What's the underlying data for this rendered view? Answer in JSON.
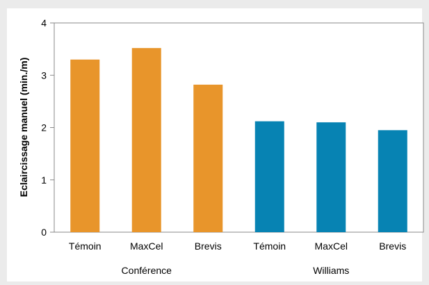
{
  "chart_data": {
    "type": "bar",
    "ylabel": "Eclaircissage manuel (min./m)",
    "ylim": [
      0,
      4
    ],
    "yticks": [
      0,
      1,
      2,
      3,
      4
    ],
    "grid": false,
    "categories": [
      "Témoin",
      "MaxCel",
      "Brevis",
      "Témoin",
      "MaxCel",
      "Brevis"
    ],
    "groups": [
      {
        "label": "Conférence",
        "color": "#e8952b",
        "indices": [
          0,
          1,
          2
        ]
      },
      {
        "label": "Williams",
        "color": "#0783b3",
        "indices": [
          3,
          4,
          5
        ]
      }
    ],
    "values": [
      3.3,
      3.52,
      2.82,
      2.12,
      2.1,
      1.95
    ]
  }
}
